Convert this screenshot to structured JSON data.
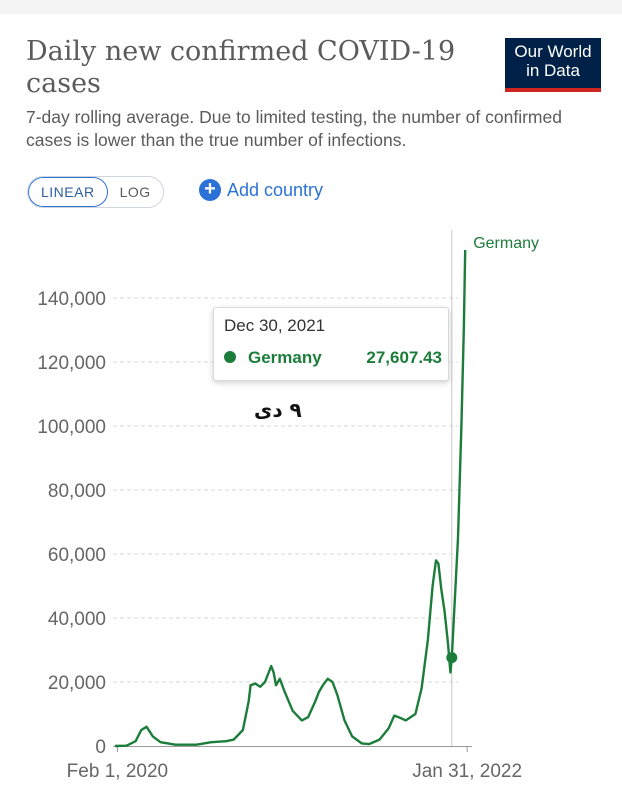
{
  "header": {
    "title": "Daily new confirmed COVID-19 cases",
    "subtitle": "7-day rolling average. Due to limited testing, the number of confirmed cases is lower than the true number of infections.",
    "logo_line1": "Our World",
    "logo_line2": "in Data"
  },
  "controls": {
    "linear_label": "LINEAR",
    "log_label": "LOG",
    "selected_scale": "linear",
    "add_country_label": "Add country"
  },
  "tooltip": {
    "date": "Dec 30, 2021",
    "series": "Germany",
    "value": "27,607.43"
  },
  "annotation": "۹ دی",
  "colors": {
    "series": "#1c7d3b",
    "accent": "#2c72d6",
    "grid": "#d9d9d9",
    "logo_bg": "#002147",
    "logo_bar": "#ce261e"
  },
  "chart_data": {
    "type": "line",
    "title": "Daily new confirmed COVID-19 cases",
    "xlabel": "",
    "ylabel": "",
    "ylim": [
      0,
      150000
    ],
    "y_ticks": [
      0,
      20000,
      40000,
      60000,
      80000,
      100000,
      120000,
      140000
    ],
    "y_tick_labels": [
      "0",
      "20,000",
      "40,000",
      "60,000",
      "80,000",
      "100,000",
      "120,000",
      "140,000"
    ],
    "x_tick_labels": [
      "Feb 1, 2020",
      "Jan 31, 2022"
    ],
    "x_range": [
      "2020-01-27",
      "2022-02-06"
    ],
    "grid": "horizontal dashed",
    "legend": "end-of-line label",
    "series": [
      {
        "name": "Germany",
        "points": [
          [
            "2020-01-27",
            0
          ],
          [
            "2020-02-20",
            100
          ],
          [
            "2020-03-10",
            1500
          ],
          [
            "2020-03-22",
            5000
          ],
          [
            "2020-04-02",
            6000
          ],
          [
            "2020-04-15",
            3000
          ],
          [
            "2020-05-01",
            1200
          ],
          [
            "2020-06-01",
            400
          ],
          [
            "2020-07-15",
            400
          ],
          [
            "2020-08-15",
            1200
          ],
          [
            "2020-09-15",
            1500
          ],
          [
            "2020-10-01",
            2000
          ],
          [
            "2020-10-20",
            5000
          ],
          [
            "2020-11-01",
            14000
          ],
          [
            "2020-11-05",
            19000
          ],
          [
            "2020-11-15",
            19500
          ],
          [
            "2020-11-25",
            18500
          ],
          [
            "2020-12-05",
            20000
          ],
          [
            "2020-12-18",
            25000
          ],
          [
            "2020-12-23",
            23000
          ],
          [
            "2020-12-28",
            19000
          ],
          [
            "2021-01-05",
            21000
          ],
          [
            "2021-01-15",
            17000
          ],
          [
            "2021-02-01",
            11000
          ],
          [
            "2021-02-20",
            8000
          ],
          [
            "2021-03-05",
            9000
          ],
          [
            "2021-03-20",
            14000
          ],
          [
            "2021-03-28",
            17000
          ],
          [
            "2021-04-05",
            19000
          ],
          [
            "2021-04-15",
            21000
          ],
          [
            "2021-04-25",
            20000
          ],
          [
            "2021-05-05",
            16000
          ],
          [
            "2021-05-20",
            8000
          ],
          [
            "2021-06-05",
            3000
          ],
          [
            "2021-06-25",
            800
          ],
          [
            "2021-07-10",
            600
          ],
          [
            "2021-08-01",
            2000
          ],
          [
            "2021-08-20",
            5500
          ],
          [
            "2021-09-01",
            9500
          ],
          [
            "2021-09-10",
            9000
          ],
          [
            "2021-09-25",
            8000
          ],
          [
            "2021-10-15",
            10000
          ],
          [
            "2021-10-28",
            18000
          ],
          [
            "2021-11-10",
            33000
          ],
          [
            "2021-11-20",
            50000
          ],
          [
            "2021-11-27",
            58000
          ],
          [
            "2021-12-02",
            57000
          ],
          [
            "2021-12-08",
            49000
          ],
          [
            "2021-12-15",
            42000
          ],
          [
            "2021-12-22",
            32000
          ],
          [
            "2021-12-27",
            23000
          ],
          [
            "2021-12-30",
            27607.43
          ],
          [
            "2022-01-05",
            45000
          ],
          [
            "2022-01-12",
            65000
          ],
          [
            "2022-01-19",
            100000
          ],
          [
            "2022-01-24",
            130000
          ],
          [
            "2022-01-27",
            155000
          ]
        ]
      }
    ],
    "highlight": {
      "date": "2021-12-30",
      "value": 27607.43
    }
  }
}
